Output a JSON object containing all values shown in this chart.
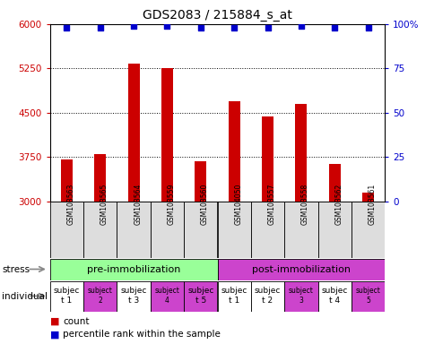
{
  "title": "GDS2083 / 215884_s_at",
  "samples": [
    "GSM103563",
    "GSM103565",
    "GSM103564",
    "GSM103559",
    "GSM103560",
    "GSM104050",
    "GSM103557",
    "GSM103558",
    "GSM103562",
    "GSM103561"
  ],
  "counts": [
    3700,
    3800,
    5330,
    5250,
    3680,
    4700,
    4430,
    4650,
    3630,
    3150
  ],
  "percentile_ranks": [
    98,
    98,
    99,
    99,
    98,
    98,
    98,
    99,
    98,
    98
  ],
  "ylim_left": [
    3000,
    6000
  ],
  "ylim_right": [
    0,
    100
  ],
  "yticks_left": [
    3000,
    3750,
    4500,
    5250,
    6000
  ],
  "yticks_right": [
    0,
    25,
    50,
    75,
    100
  ],
  "bar_color": "#cc0000",
  "dot_color": "#0000cc",
  "stress_groups": [
    {
      "label": "pre-immobilization",
      "indices": [
        0,
        1,
        2,
        3,
        4
      ],
      "color": "#99ff99"
    },
    {
      "label": "post-immobilization",
      "indices": [
        5,
        6,
        7,
        8,
        9
      ],
      "color": "#cc44cc"
    }
  ],
  "individuals": [
    {
      "label": "subjec\nt 1",
      "index": 0,
      "color": "#ffffff",
      "small": false
    },
    {
      "label": "subject\n2",
      "index": 1,
      "color": "#cc44cc",
      "small": true
    },
    {
      "label": "subjec\nt 3",
      "index": 2,
      "color": "#ffffff",
      "small": false
    },
    {
      "label": "subject\n4",
      "index": 3,
      "color": "#cc44cc",
      "small": true
    },
    {
      "label": "subjec\nt 5",
      "index": 4,
      "color": "#cc44cc",
      "small": false
    },
    {
      "label": "subjec\nt 1",
      "index": 5,
      "color": "#ffffff",
      "small": false
    },
    {
      "label": "subjec\nt 2",
      "index": 6,
      "color": "#ffffff",
      "small": false
    },
    {
      "label": "subject\n3",
      "index": 7,
      "color": "#cc44cc",
      "small": true
    },
    {
      "label": "subjec\nt 4",
      "index": 8,
      "color": "#ffffff",
      "small": false
    },
    {
      "label": "subject\n5",
      "index": 9,
      "color": "#cc44cc",
      "small": true
    }
  ],
  "legend_count_color": "#cc0000",
  "legend_dot_color": "#0000cc",
  "label_color_left": "#cc0000",
  "label_color_right": "#0000cc",
  "sample_bg_color": "#dddddd"
}
